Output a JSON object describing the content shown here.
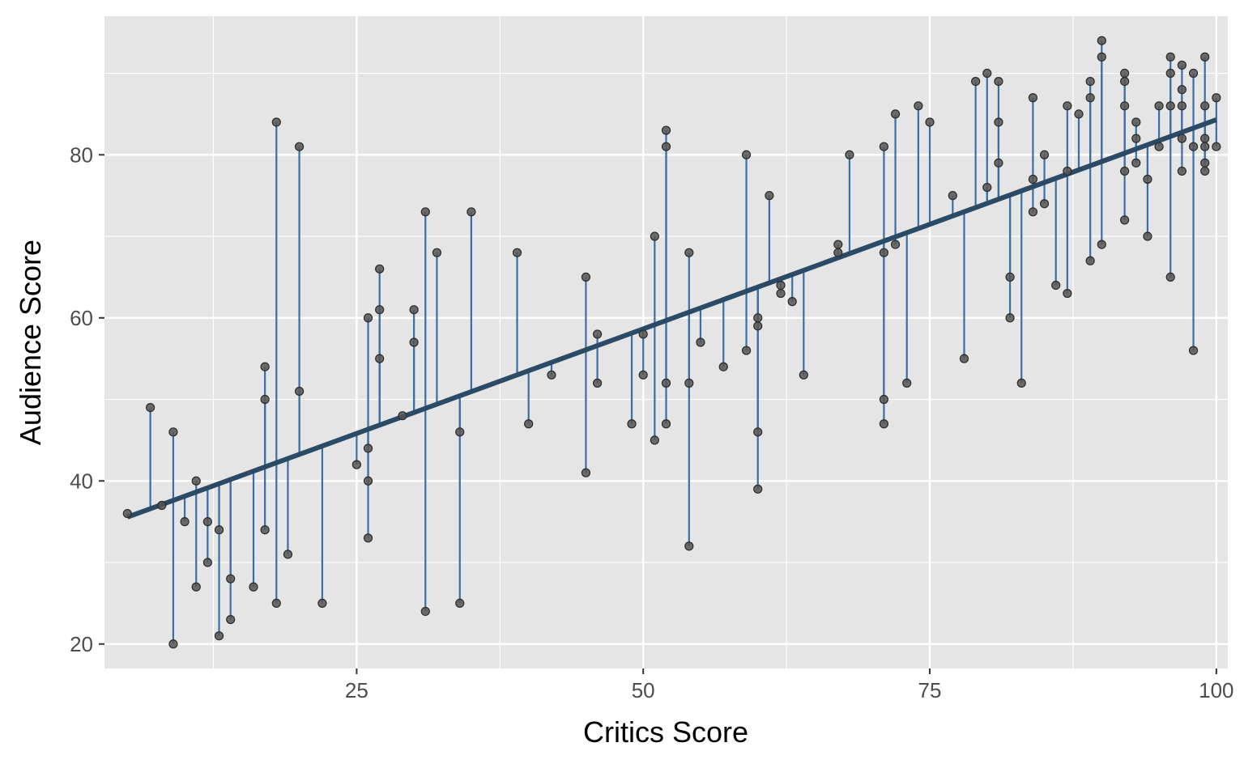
{
  "chart_data": {
    "type": "scatter",
    "xlabel": "Critics Score",
    "ylabel": "Audience Score",
    "xlim": [
      3,
      101
    ],
    "ylim": [
      17,
      97
    ],
    "x_ticks": [
      25,
      50,
      75,
      100
    ],
    "y_ticks": [
      20,
      40,
      60,
      80
    ],
    "grid": true,
    "background": "#e5e5e5",
    "grid_color": "#ffffff",
    "point_color": "#555555",
    "residual_color": "#3a6ea5",
    "fit_line_color": "#2b4a66",
    "fit_line": {
      "intercept": 33.0,
      "slope": 0.513
    },
    "points": [
      {
        "x": 5,
        "y": 36
      },
      {
        "x": 7,
        "y": 49
      },
      {
        "x": 8,
        "y": 37
      },
      {
        "x": 9,
        "y": 46
      },
      {
        "x": 9,
        "y": 20
      },
      {
        "x": 10,
        "y": 35
      },
      {
        "x": 11,
        "y": 40
      },
      {
        "x": 11,
        "y": 27
      },
      {
        "x": 12,
        "y": 35
      },
      {
        "x": 12,
        "y": 30
      },
      {
        "x": 13,
        "y": 34
      },
      {
        "x": 13,
        "y": 21
      },
      {
        "x": 14,
        "y": 28
      },
      {
        "x": 14,
        "y": 23
      },
      {
        "x": 16,
        "y": 27
      },
      {
        "x": 17,
        "y": 54
      },
      {
        "x": 17,
        "y": 50
      },
      {
        "x": 17,
        "y": 34
      },
      {
        "x": 18,
        "y": 84
      },
      {
        "x": 18,
        "y": 25
      },
      {
        "x": 19,
        "y": 31
      },
      {
        "x": 20,
        "y": 81
      },
      {
        "x": 20,
        "y": 51
      },
      {
        "x": 22,
        "y": 25
      },
      {
        "x": 25,
        "y": 42
      },
      {
        "x": 26,
        "y": 60
      },
      {
        "x": 26,
        "y": 44
      },
      {
        "x": 26,
        "y": 40
      },
      {
        "x": 26,
        "y": 33
      },
      {
        "x": 27,
        "y": 66
      },
      {
        "x": 27,
        "y": 61
      },
      {
        "x": 27,
        "y": 55
      },
      {
        "x": 29,
        "y": 48
      },
      {
        "x": 30,
        "y": 61
      },
      {
        "x": 30,
        "y": 57
      },
      {
        "x": 31,
        "y": 73
      },
      {
        "x": 31,
        "y": 24
      },
      {
        "x": 32,
        "y": 68
      },
      {
        "x": 34,
        "y": 46
      },
      {
        "x": 34,
        "y": 25
      },
      {
        "x": 35,
        "y": 73
      },
      {
        "x": 39,
        "y": 68
      },
      {
        "x": 40,
        "y": 47
      },
      {
        "x": 42,
        "y": 53
      },
      {
        "x": 45,
        "y": 65
      },
      {
        "x": 45,
        "y": 41
      },
      {
        "x": 46,
        "y": 58
      },
      {
        "x": 46,
        "y": 52
      },
      {
        "x": 49,
        "y": 47
      },
      {
        "x": 50,
        "y": 58
      },
      {
        "x": 50,
        "y": 53
      },
      {
        "x": 51,
        "y": 70
      },
      {
        "x": 51,
        "y": 45
      },
      {
        "x": 52,
        "y": 83
      },
      {
        "x": 52,
        "y": 81
      },
      {
        "x": 52,
        "y": 52
      },
      {
        "x": 52,
        "y": 47
      },
      {
        "x": 54,
        "y": 68
      },
      {
        "x": 54,
        "y": 52
      },
      {
        "x": 54,
        "y": 32
      },
      {
        "x": 55,
        "y": 57
      },
      {
        "x": 57,
        "y": 54
      },
      {
        "x": 59,
        "y": 80
      },
      {
        "x": 59,
        "y": 56
      },
      {
        "x": 60,
        "y": 60
      },
      {
        "x": 60,
        "y": 59
      },
      {
        "x": 60,
        "y": 46
      },
      {
        "x": 60,
        "y": 39
      },
      {
        "x": 61,
        "y": 75
      },
      {
        "x": 62,
        "y": 64
      },
      {
        "x": 62,
        "y": 63
      },
      {
        "x": 63,
        "y": 62
      },
      {
        "x": 64,
        "y": 53
      },
      {
        "x": 67,
        "y": 69
      },
      {
        "x": 67,
        "y": 68
      },
      {
        "x": 68,
        "y": 80
      },
      {
        "x": 71,
        "y": 81
      },
      {
        "x": 71,
        "y": 68
      },
      {
        "x": 71,
        "y": 50
      },
      {
        "x": 71,
        "y": 47
      },
      {
        "x": 72,
        "y": 85
      },
      {
        "x": 72,
        "y": 69
      },
      {
        "x": 73,
        "y": 52
      },
      {
        "x": 74,
        "y": 86
      },
      {
        "x": 75,
        "y": 84
      },
      {
        "x": 77,
        "y": 75
      },
      {
        "x": 78,
        "y": 55
      },
      {
        "x": 79,
        "y": 89
      },
      {
        "x": 80,
        "y": 90
      },
      {
        "x": 80,
        "y": 76
      },
      {
        "x": 81,
        "y": 89
      },
      {
        "x": 81,
        "y": 84
      },
      {
        "x": 81,
        "y": 79
      },
      {
        "x": 82,
        "y": 65
      },
      {
        "x": 82,
        "y": 60
      },
      {
        "x": 83,
        "y": 52
      },
      {
        "x": 84,
        "y": 87
      },
      {
        "x": 84,
        "y": 77
      },
      {
        "x": 84,
        "y": 73
      },
      {
        "x": 85,
        "y": 80
      },
      {
        "x": 85,
        "y": 74
      },
      {
        "x": 86,
        "y": 64
      },
      {
        "x": 87,
        "y": 86
      },
      {
        "x": 87,
        "y": 78
      },
      {
        "x": 87,
        "y": 63
      },
      {
        "x": 88,
        "y": 85
      },
      {
        "x": 89,
        "y": 89
      },
      {
        "x": 89,
        "y": 87
      },
      {
        "x": 89,
        "y": 67
      },
      {
        "x": 90,
        "y": 94
      },
      {
        "x": 90,
        "y": 92
      },
      {
        "x": 90,
        "y": 69
      },
      {
        "x": 92,
        "y": 90
      },
      {
        "x": 92,
        "y": 89
      },
      {
        "x": 92,
        "y": 86
      },
      {
        "x": 92,
        "y": 78
      },
      {
        "x": 92,
        "y": 72
      },
      {
        "x": 93,
        "y": 84
      },
      {
        "x": 93,
        "y": 82
      },
      {
        "x": 93,
        "y": 79
      },
      {
        "x": 94,
        "y": 77
      },
      {
        "x": 94,
        "y": 70
      },
      {
        "x": 95,
        "y": 86
      },
      {
        "x": 95,
        "y": 81
      },
      {
        "x": 96,
        "y": 92
      },
      {
        "x": 96,
        "y": 90
      },
      {
        "x": 96,
        "y": 86
      },
      {
        "x": 96,
        "y": 65
      },
      {
        "x": 97,
        "y": 91
      },
      {
        "x": 97,
        "y": 88
      },
      {
        "x": 97,
        "y": 86
      },
      {
        "x": 97,
        "y": 82
      },
      {
        "x": 97,
        "y": 78
      },
      {
        "x": 98,
        "y": 90
      },
      {
        "x": 98,
        "y": 81
      },
      {
        "x": 98,
        "y": 56
      },
      {
        "x": 99,
        "y": 92
      },
      {
        "x": 99,
        "y": 86
      },
      {
        "x": 99,
        "y": 82
      },
      {
        "x": 99,
        "y": 81
      },
      {
        "x": 99,
        "y": 79
      },
      {
        "x": 99,
        "y": 78
      },
      {
        "x": 100,
        "y": 87
      },
      {
        "x": 100,
        "y": 81
      }
    ]
  }
}
